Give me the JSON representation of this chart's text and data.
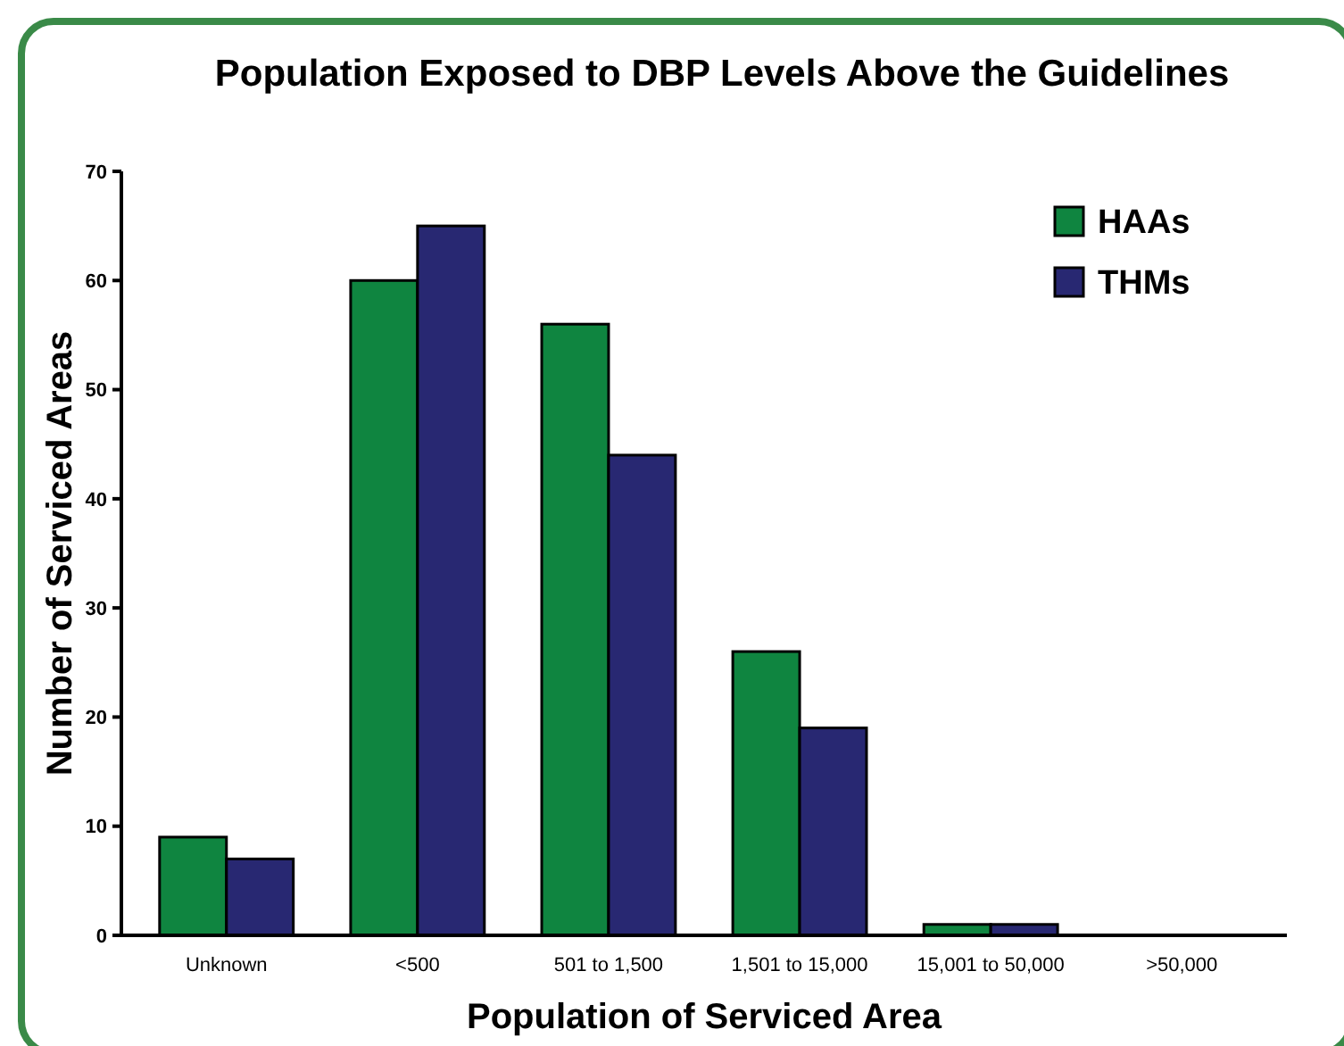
{
  "chart_data": {
    "type": "bar",
    "title": "Population Exposed to DBP Levels Above the Guidelines",
    "xlabel": "Population of Serviced Area",
    "ylabel": "Number of Serviced Areas",
    "categories": [
      "Unknown",
      "<500",
      "501 to 1,500",
      "1,501 to 15,000",
      "15,001 to 50,000",
      ">50,000"
    ],
    "series": [
      {
        "name": "HAAs",
        "color": "#0f8540",
        "values": [
          9,
          60,
          56,
          26,
          1,
          0
        ]
      },
      {
        "name": "THMs",
        "color": "#282872",
        "values": [
          7,
          65,
          44,
          19,
          1,
          0
        ]
      }
    ],
    "ylim": [
      0,
      70
    ],
    "yticks": [
      0,
      10,
      20,
      30,
      40,
      50,
      60,
      70
    ],
    "grid": false,
    "legend": "top right"
  }
}
